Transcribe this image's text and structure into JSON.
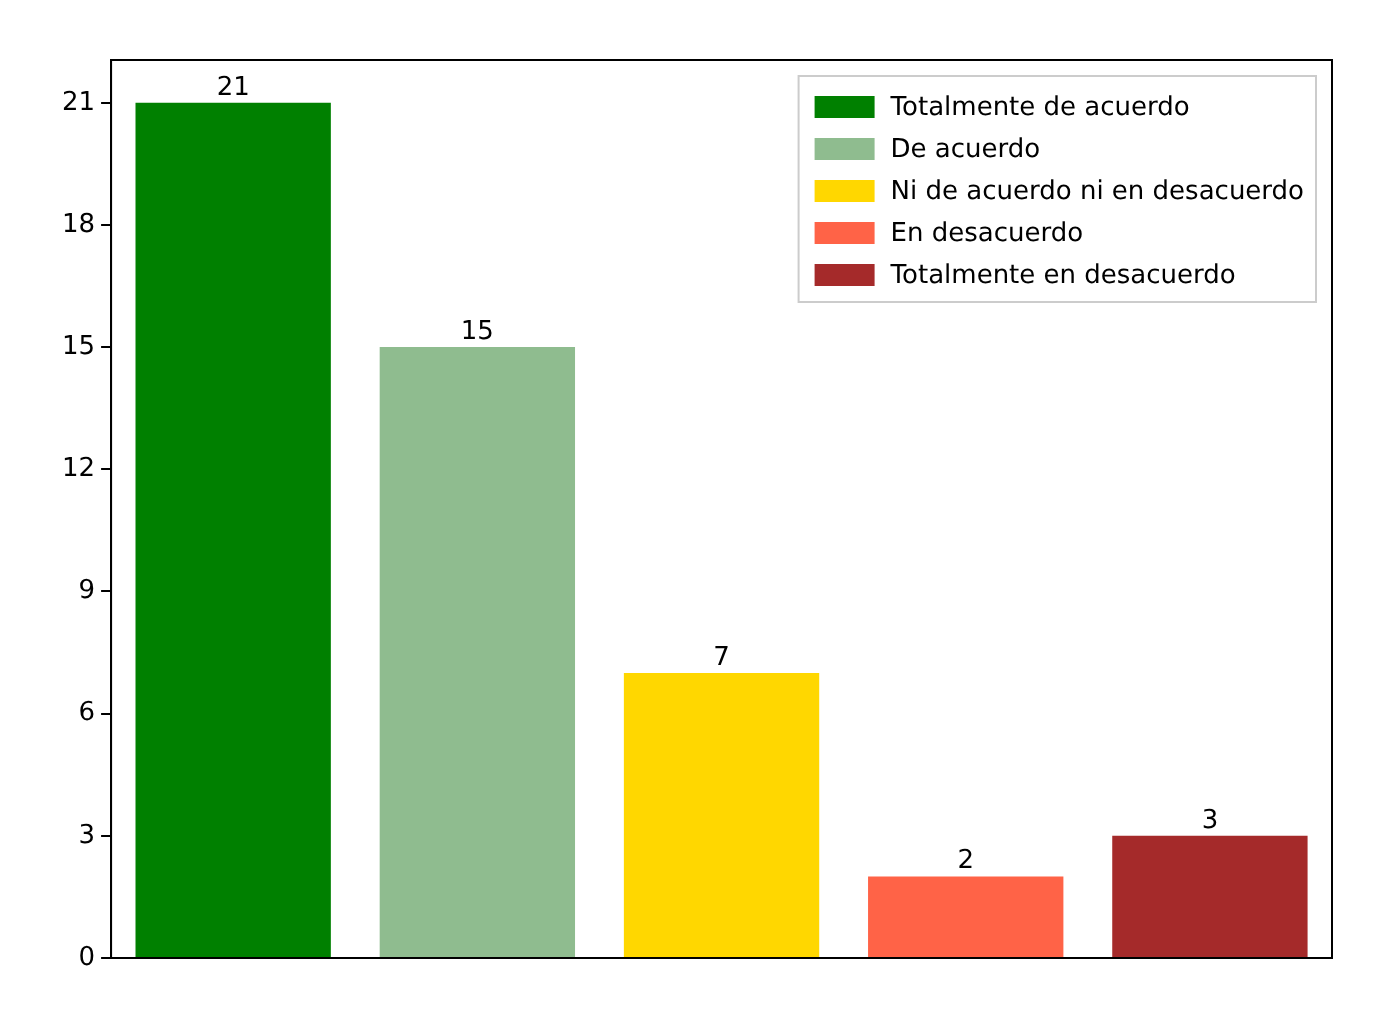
{
  "chart_data": {
    "type": "bar",
    "categories": [
      null,
      null,
      null,
      null,
      null
    ],
    "series": [
      {
        "name": "Totalmente de acuerdo",
        "color": "#008000",
        "values": [
          21,
          null,
          null,
          null,
          null
        ]
      },
      {
        "name": "De acuerdo",
        "color": "#8fbc8f",
        "values": [
          null,
          15,
          null,
          null,
          null
        ]
      },
      {
        "name": "Ni de acuerdo ni en desacuerdo",
        "color": "#ffd700",
        "values": [
          null,
          null,
          7,
          null,
          null
        ]
      },
      {
        "name": "En desacuerdo",
        "color": "#ff6347",
        "values": [
          null,
          null,
          null,
          2,
          null
        ]
      },
      {
        "name": "Totalmente en desacuerdo",
        "color": "#a52a2a",
        "values": [
          null,
          null,
          null,
          null,
          3
        ]
      }
    ],
    "stacked": true,
    "ylim": [
      0,
      22.05
    ],
    "yticks": [
      0,
      3,
      6,
      9,
      12,
      15,
      18,
      21
    ],
    "tick_labels": "y",
    "data_labels": true,
    "legend": "top right",
    "grid": false
  }
}
